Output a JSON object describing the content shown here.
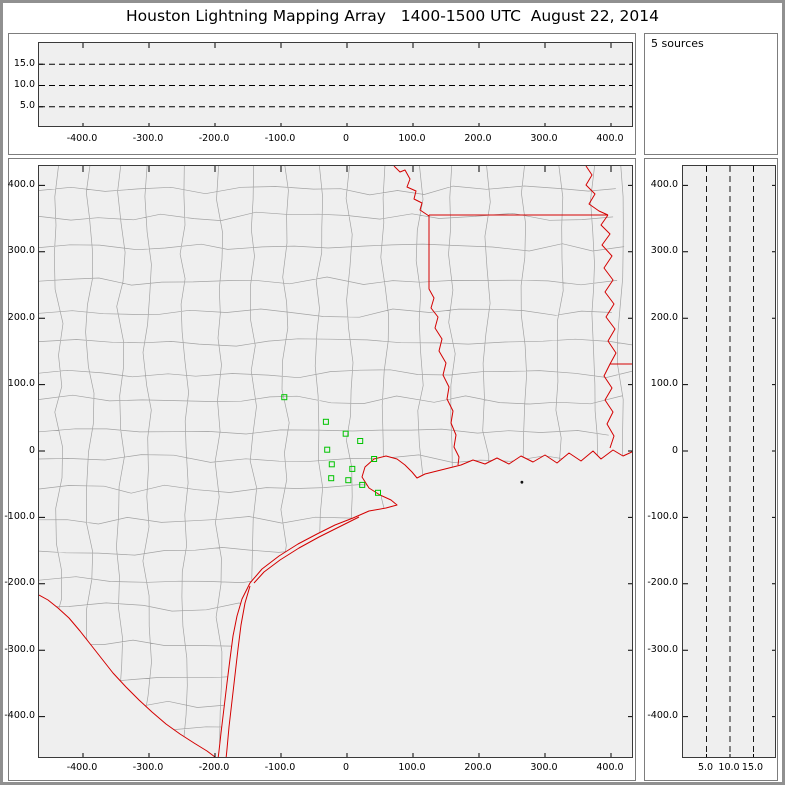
{
  "title": "Houston Lightning Mapping Array   1400-1500 UTC  August 22, 2014",
  "top_right_panel": {
    "label": "5 sources"
  },
  "axes": {
    "ew_ticks": [
      "-400.0",
      "-300.0",
      "-200.0",
      "-100.0",
      "0",
      "100.0",
      "200.0",
      "300.0",
      "400.0"
    ],
    "ns_ticks": [
      "400.0",
      "300.0",
      "200.0",
      "100.0",
      "0",
      "-100.0",
      "-200.0",
      "-300.0",
      "-400.0"
    ],
    "alt_ticks_top": [
      "15.0",
      "10.0",
      "5.0"
    ],
    "alt_ticks_right": [
      "5.0",
      "10.0",
      "15.0"
    ]
  },
  "chart_data": {
    "type": "scatter",
    "layout": "lma-multi-panel",
    "title": "Houston Lightning Mapping Array 1400-1500 UTC August 22, 2014",
    "sources_count": 5,
    "panels": {
      "altitude_vs_east_west": {
        "x_ticks_km": [
          -400,
          -300,
          -200,
          -100,
          0,
          100,
          200,
          300,
          400
        ],
        "alt_gridlines_km": [
          5,
          10,
          15
        ],
        "alt_range_km": [
          0,
          20
        ],
        "points": []
      },
      "plan_view_map": {
        "x_ticks_km": [
          -400,
          -300,
          -200,
          -100,
          0,
          100,
          200,
          300,
          400
        ],
        "y_ticks_km": [
          400,
          300,
          200,
          100,
          0,
          -100,
          -200,
          -300,
          -400
        ],
        "source_points_km": [
          [
            265,
            -47
          ]
        ],
        "map_layers": [
          "county-boundaries",
          "state-boundaries",
          "coastline",
          "rivers"
        ]
      },
      "altitude_vs_north_south": {
        "alt_gridlines_km": [
          5,
          10,
          15
        ],
        "alt_range_km": [
          0,
          20
        ],
        "y_ticks_km": [
          400,
          300,
          200,
          100,
          0,
          -100,
          -200,
          -300,
          -400
        ],
        "points": []
      }
    },
    "lma_stations_km": [
      [
        -95,
        81
      ],
      [
        -32,
        44
      ],
      [
        -2,
        26
      ],
      [
        20,
        15
      ],
      [
        -30,
        2
      ],
      [
        41,
        -12
      ],
      [
        -23,
        -20
      ],
      [
        8,
        -27
      ],
      [
        -24,
        -41
      ],
      [
        2,
        -44
      ],
      [
        23,
        -51
      ],
      [
        47,
        -63
      ]
    ]
  },
  "colors": {
    "state_border": "#d40000",
    "county_border": "#a3a3a3",
    "station": "#00c400",
    "source_point": "#111111",
    "plot_background": "#efefef",
    "gridline": "#000000",
    "frame": "#909090"
  }
}
